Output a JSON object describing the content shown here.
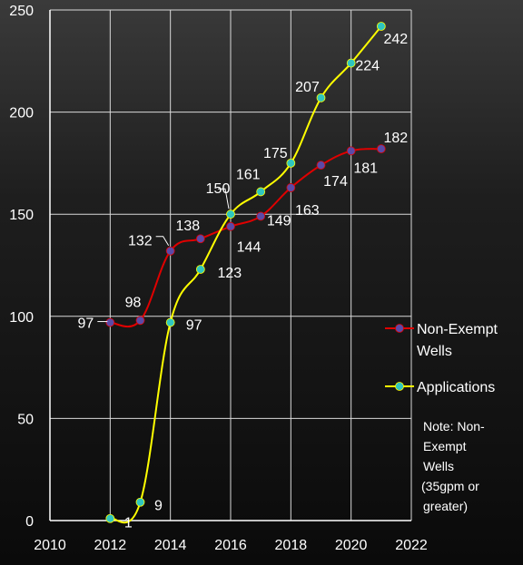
{
  "chart_data": {
    "type": "line",
    "xlim": [
      2010,
      2022
    ],
    "ylim": [
      0,
      250
    ],
    "x_ticks": [
      "2010",
      "2012",
      "2014",
      "2016",
      "2018",
      "2020",
      "2022"
    ],
    "y_ticks": [
      "0",
      "50",
      "100",
      "150",
      "200",
      "250"
    ],
    "grid": true,
    "legend_position": "right",
    "series": [
      {
        "name": "Non-Exempt Wells",
        "color": "#e00000",
        "marker_color": "#5b4aa8",
        "x": [
          2012,
          2013,
          2014,
          2015,
          2016,
          2017,
          2018,
          2019,
          2020,
          2021
        ],
        "values": [
          97,
          98,
          132,
          138,
          144,
          149,
          163,
          174,
          181,
          182
        ],
        "labels": [
          "97",
          "98",
          "132",
          "138",
          "144",
          "149",
          "163",
          "174",
          "181",
          "182"
        ]
      },
      {
        "name": "Applications",
        "color": "#ffff00",
        "marker_color": "#2fc6c0",
        "x": [
          2012,
          2013,
          2014,
          2015,
          2016,
          2017,
          2018,
          2019,
          2020,
          2021
        ],
        "values": [
          1,
          9,
          97,
          123,
          150,
          161,
          175,
          207,
          224,
          242
        ],
        "labels": [
          "1",
          "9",
          "97",
          "123",
          "150",
          "161",
          "175",
          "207",
          "224",
          "242"
        ]
      }
    ],
    "legend": [
      {
        "lines": [
          "Non-Exempt",
          "Wells"
        ],
        "color": "#e00000",
        "marker_color": "#5b4aa8"
      },
      {
        "lines": [
          "Applications"
        ],
        "color": "#ffff00",
        "marker_color": "#2fc6c0"
      }
    ],
    "annotations": [
      {
        "lines": [
          "Note: Non-",
          "Exempt",
          "Wells",
          "(35gpm or",
          "greater)"
        ]
      }
    ]
  }
}
